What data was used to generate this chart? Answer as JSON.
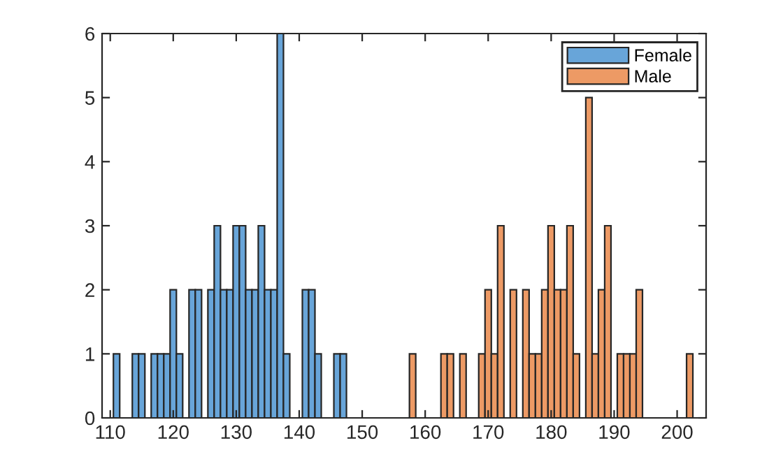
{
  "chart_data": {
    "type": "histogram",
    "bins": [
      110.5,
      111.5,
      112.5,
      113.5,
      114.5,
      115.5,
      116.5,
      117.5,
      118.5,
      119.5,
      120.5,
      121.5,
      122.5,
      123.5,
      124.5,
      125.5,
      126.5,
      127.5,
      128.5,
      129.5,
      130.5,
      131.5,
      132.5,
      133.5,
      134.5,
      135.5,
      136.5,
      137.5,
      138.5,
      139.5,
      140.5,
      141.5,
      142.5,
      143.5,
      144.5,
      145.5,
      146.5,
      147.5,
      148.5,
      149.5,
      150.5,
      151.5,
      152.5,
      153.5,
      154.5,
      155.5,
      156.5,
      157.5,
      158.5,
      159.5,
      160.5,
      161.5,
      162.5,
      163.5,
      164.5,
      165.5,
      166.5,
      167.5,
      168.5,
      169.5,
      170.5,
      171.5,
      172.5,
      173.5,
      174.5,
      175.5,
      176.5,
      177.5,
      178.5,
      179.5,
      180.5,
      181.5,
      182.5,
      183.5,
      184.5,
      185.5,
      186.5,
      187.5,
      188.5,
      189.5,
      190.5,
      191.5,
      192.5,
      193.5,
      194.5,
      195.5,
      196.5,
      197.5,
      198.5,
      199.5,
      200.5,
      201.5,
      202.5
    ],
    "series": [
      {
        "name": "Female",
        "color": "#68a5d9",
        "values": [
          1,
          0,
          0,
          1,
          1,
          0,
          1,
          1,
          1,
          2,
          1,
          0,
          2,
          2,
          0,
          2,
          3,
          2,
          2,
          3,
          3,
          2,
          2,
          3,
          2,
          2,
          6,
          1,
          0,
          0,
          2,
          2,
          1,
          0,
          0,
          1,
          1,
          0,
          0,
          0,
          0,
          0,
          0,
          0,
          0,
          0,
          0,
          0,
          0,
          0,
          0,
          0,
          0,
          0,
          0,
          0,
          0,
          0,
          0,
          0,
          0,
          0,
          0,
          0,
          0,
          0,
          0,
          0,
          0,
          0,
          0,
          0,
          0,
          0,
          0,
          0,
          0,
          0,
          0,
          0,
          0,
          0,
          0,
          0,
          0,
          0,
          0,
          0,
          0,
          0,
          0,
          0
        ]
      },
      {
        "name": "Male",
        "color": "#ed9a65",
        "values": [
          0,
          0,
          0,
          0,
          0,
          0,
          0,
          0,
          0,
          0,
          0,
          0,
          0,
          0,
          0,
          0,
          0,
          0,
          0,
          0,
          0,
          0,
          0,
          0,
          0,
          0,
          0,
          0,
          0,
          0,
          0,
          0,
          0,
          0,
          0,
          0,
          0,
          0,
          0,
          0,
          0,
          0,
          0,
          0,
          0,
          0,
          0,
          1,
          0,
          0,
          0,
          0,
          1,
          1,
          0,
          1,
          0,
          0,
          1,
          2,
          1,
          3,
          0,
          2,
          0,
          2,
          1,
          1,
          2,
          3,
          2,
          2,
          3,
          1,
          0,
          5,
          1,
          2,
          3,
          0,
          1,
          1,
          1,
          2,
          0,
          0,
          0,
          0,
          0,
          0,
          0,
          1
        ]
      }
    ],
    "xlim": [
      108.7,
      204.6
    ],
    "xticks": [
      110,
      120,
      130,
      140,
      150,
      160,
      170,
      180,
      190,
      200
    ],
    "ylim": [
      0,
      6
    ],
    "yticks": [
      0,
      1,
      2,
      3,
      4,
      5,
      6
    ],
    "legend": "top right"
  }
}
